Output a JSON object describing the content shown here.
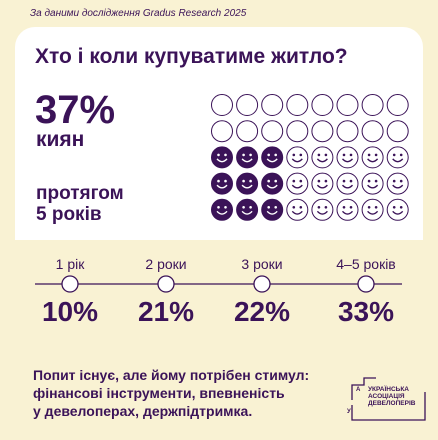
{
  "header": {
    "source": "За даними дослідження Gradus Research 2025"
  },
  "card": {
    "title": "Хто і коли купуватиме житло?",
    "stat": {
      "value": "37%",
      "label": "киян",
      "period_lines": [
        "протягом",
        "5 років"
      ]
    }
  },
  "timeline": {
    "items": [
      {
        "label": "1 рік",
        "value": "10%"
      },
      {
        "label": "2 роки",
        "value": "21%"
      },
      {
        "label": "3 роки",
        "value": "22%"
      },
      {
        "label": "4–5 років",
        "value": "33%"
      }
    ]
  },
  "footer": {
    "lines": [
      "Попит існує, але йому потрібен стимул:",
      "фінансові інструменти, впевненість",
      "у девелоперах, держпідтримка."
    ]
  },
  "logo": {
    "letters": [
      "А",
      "У"
    ],
    "lines": [
      "УКРАЇНСЬКА",
      "АСОЦІАЦІЯ",
      "ДЕВЕЛОПЕРІВ"
    ]
  }
}
